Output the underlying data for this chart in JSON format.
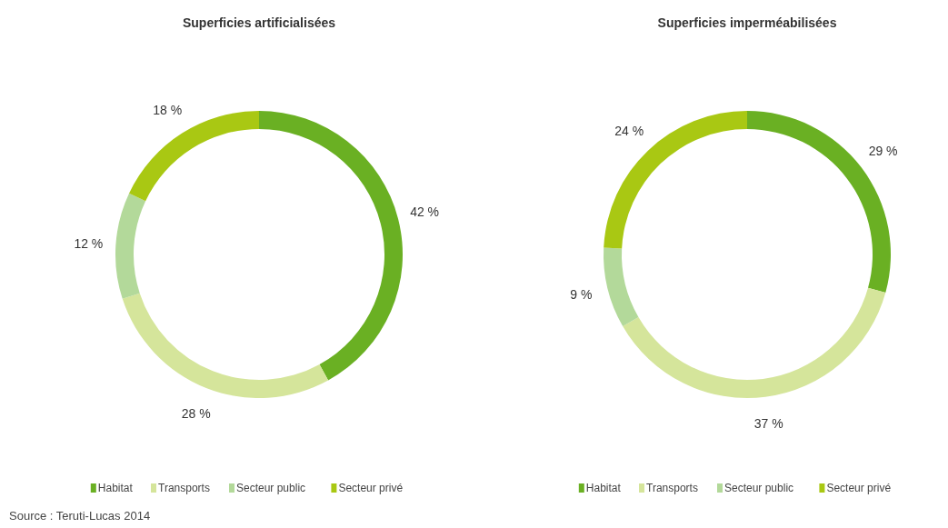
{
  "chart_data": [
    {
      "type": "donut",
      "title": "Superficies artificialisées",
      "categories": [
        "Habitat",
        "Transports",
        "Secteur public",
        "Secteur privé"
      ],
      "values": [
        42,
        28,
        12,
        18
      ],
      "colors": [
        "#6ab023",
        "#d5e59b",
        "#b3d99a",
        "#a9c813"
      ],
      "value_labels": [
        "42 %",
        "28 %",
        "12 %",
        "18 %"
      ],
      "legend": "bottom",
      "annotations": [
        "Source : Teruti-Lucas 2014"
      ]
    },
    {
      "type": "donut",
      "title": "Superficies imperméabilisées",
      "categories": [
        "Habitat",
        "Transports",
        "Secteur public",
        "Secteur privé"
      ],
      "values": [
        29,
        37,
        9,
        24
      ],
      "colors": [
        "#6ab023",
        "#d5e59b",
        "#b3d99a",
        "#a9c813"
      ],
      "value_labels": [
        "29 %",
        "37 %",
        "9 %",
        "24 %"
      ],
      "legend": "bottom"
    }
  ]
}
